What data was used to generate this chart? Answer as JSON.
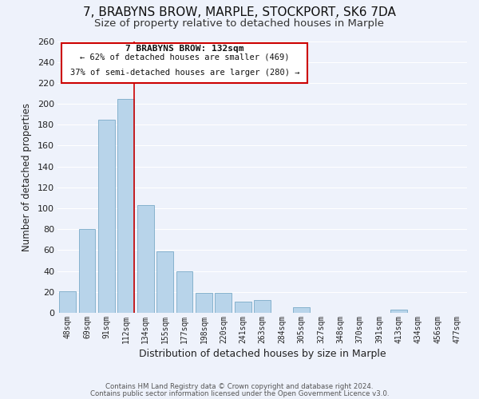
{
  "title": "7, BRABYNS BROW, MARPLE, STOCKPORT, SK6 7DA",
  "subtitle": "Size of property relative to detached houses in Marple",
  "xlabel": "Distribution of detached houses by size in Marple",
  "ylabel": "Number of detached properties",
  "bar_labels": [
    "48sqm",
    "69sqm",
    "91sqm",
    "112sqm",
    "134sqm",
    "155sqm",
    "177sqm",
    "198sqm",
    "220sqm",
    "241sqm",
    "263sqm",
    "284sqm",
    "305sqm",
    "327sqm",
    "348sqm",
    "370sqm",
    "391sqm",
    "413sqm",
    "434sqm",
    "456sqm",
    "477sqm"
  ],
  "bar_values": [
    21,
    80,
    185,
    205,
    103,
    59,
    40,
    19,
    19,
    11,
    12,
    0,
    5,
    0,
    0,
    0,
    0,
    3,
    0,
    0,
    0
  ],
  "bar_color": "#b8d4ea",
  "bar_edge_color": "#7aaac8",
  "vline_color": "#cc0000",
  "ylim": [
    0,
    260
  ],
  "yticks": [
    0,
    20,
    40,
    60,
    80,
    100,
    120,
    140,
    160,
    180,
    200,
    220,
    240,
    260
  ],
  "annotation_title": "7 BRABYNS BROW: 132sqm",
  "annotation_line1": "← 62% of detached houses are smaller (469)",
  "annotation_line2": "37% of semi-detached houses are larger (280) →",
  "annotation_box_facecolor": "#ffffff",
  "annotation_box_edgecolor": "#cc0000",
  "footer_line1": "Contains HM Land Registry data © Crown copyright and database right 2024.",
  "footer_line2": "Contains public sector information licensed under the Open Government Licence v3.0.",
  "background_color": "#eef2fb",
  "grid_color": "#ffffff",
  "title_fontsize": 11,
  "subtitle_fontsize": 9.5,
  "xlabel_fontsize": 9,
  "ylabel_fontsize": 8.5
}
